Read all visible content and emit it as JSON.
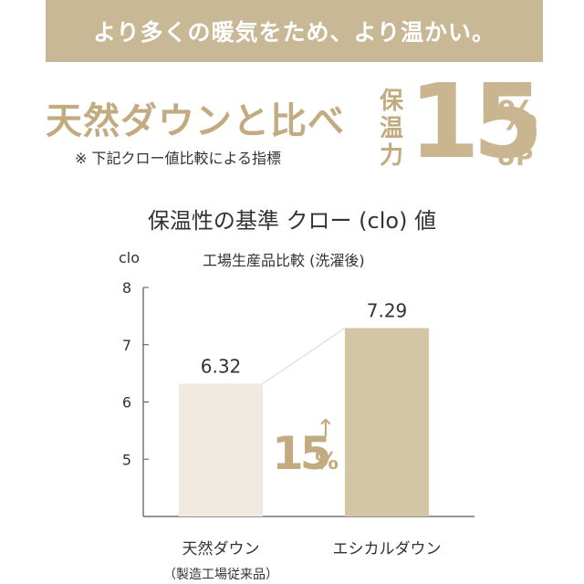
{
  "banner": {
    "text": "より多くの暖気をため、より温かい。"
  },
  "headline": {
    "text": "天然ダウンと比べ",
    "note": "※ 下記クロー値比較による指標"
  },
  "highlight": {
    "label_line1": "保",
    "label_line2": "温",
    "label_line3": "力",
    "number": "15",
    "percent": "%",
    "suffix": "UP"
  },
  "chart_title": "保温性の基準 クロー (clo) 値",
  "chart_data": {
    "type": "bar",
    "subtitle": "工場生産品比較 (洗濯後)",
    "ylabel": "clo",
    "ylim": [
      4,
      8
    ],
    "yticks": [
      5,
      6,
      7,
      8
    ],
    "categories": [
      "天然ダウン",
      "エシカルダウン"
    ],
    "category_sublabels": [
      "（製造工場従来品）",
      ""
    ],
    "values": [
      6.32,
      7.29
    ],
    "value_labels": [
      "6.32",
      "7.29"
    ],
    "colors": [
      "#f0e9e0",
      "#d3c5a5"
    ],
    "annotation": {
      "number": "15",
      "percent": "%",
      "arrow": "↑"
    }
  }
}
